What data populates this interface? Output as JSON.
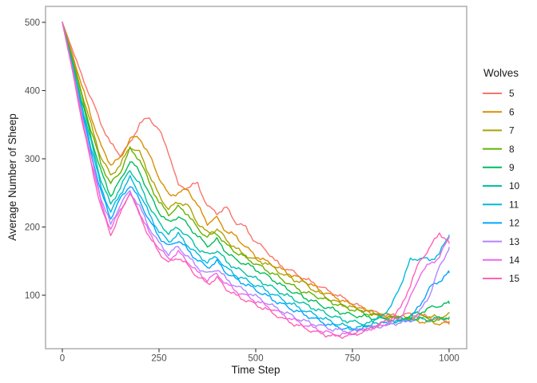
{
  "chart_data": {
    "type": "line",
    "title": "",
    "xlabel": "Time Step",
    "ylabel": "Average Number of Sheep",
    "legend_title": "Wolves",
    "legend_position": "right",
    "grid": false,
    "background": "#ffffff",
    "panel_border_color": "#b3b3b3",
    "tick_color": "#333333",
    "tick_label_color": "#4d4d4d",
    "axis_title_color": "#1a1a1a",
    "xlim": [
      -40,
      1045
    ],
    "ylim": [
      24,
      523
    ],
    "x_ticks": [
      0,
      250,
      500,
      750,
      1000
    ],
    "y_ticks": [
      100,
      200,
      300,
      400,
      500
    ],
    "x": [
      0,
      25,
      50,
      75,
      100,
      125,
      150,
      175,
      200,
      225,
      250,
      275,
      300,
      325,
      350,
      375,
      400,
      425,
      450,
      475,
      500,
      525,
      550,
      575,
      600,
      625,
      650,
      675,
      700,
      725,
      750,
      775,
      800,
      825,
      850,
      875,
      900,
      925,
      950,
      975,
      1000
    ],
    "series": [
      {
        "name": "5",
        "color": "#F8766D",
        "values": [
          500,
          462,
          422,
          388,
          352,
          322,
          306,
          322,
          352,
          360,
          342,
          310,
          260,
          258,
          264,
          230,
          221,
          228,
          206,
          199,
          177,
          168,
          150,
          140,
          133,
          124,
          118,
          110,
          103,
          96,
          88,
          82,
          76,
          72,
          70,
          71,
          72,
          70,
          68,
          64,
          62
        ]
      },
      {
        "name": "6",
        "color": "#DB8E00",
        "values": [
          500,
          455,
          408,
          362,
          318,
          292,
          300,
          330,
          331,
          305,
          273,
          246,
          250,
          255,
          231,
          206,
          213,
          193,
          186,
          170,
          158,
          150,
          143,
          135,
          128,
          122,
          113,
          105,
          99,
          92,
          86,
          80,
          74,
          70,
          68,
          66,
          64,
          62,
          60,
          59,
          58
        ]
      },
      {
        "name": "7",
        "color": "#AEA200",
        "values": [
          500,
          450,
          398,
          348,
          302,
          276,
          291,
          318,
          309,
          277,
          246,
          226,
          237,
          231,
          206,
          191,
          197,
          181,
          168,
          158,
          151,
          148,
          139,
          129,
          123,
          118,
          108,
          99,
          92,
          86,
          82,
          78,
          75,
          72,
          70,
          68,
          67,
          71,
          69,
          67,
          74
        ]
      },
      {
        "name": "8",
        "color": "#64B200",
        "values": [
          500,
          448,
          392,
          340,
          293,
          263,
          281,
          314,
          299,
          265,
          236,
          219,
          229,
          219,
          197,
          186,
          191,
          173,
          163,
          155,
          146,
          138,
          130,
          121,
          112,
          105,
          100,
          95,
          89,
          84,
          79,
          75,
          72,
          69,
          67,
          65,
          64,
          67,
          65,
          63,
          68
        ]
      },
      {
        "name": "9",
        "color": "#00BD5C",
        "values": [
          500,
          445,
          385,
          331,
          281,
          246,
          268,
          297,
          281,
          248,
          222,
          206,
          216,
          203,
          186,
          173,
          181,
          163,
          151,
          146,
          138,
          130,
          121,
          111,
          104,
          97,
          91,
          84,
          79,
          74,
          71,
          69,
          67,
          65,
          64,
          66,
          70,
          75,
          81,
          85,
          88
        ]
      },
      {
        "name": "10",
        "color": "#00C1A7",
        "values": [
          500,
          442,
          380,
          323,
          269,
          233,
          258,
          284,
          262,
          231,
          206,
          191,
          199,
          186,
          169,
          159,
          166,
          149,
          139,
          132,
          124,
          117,
          109,
          101,
          94,
          87,
          81,
          75,
          69,
          64,
          61,
          59,
          59,
          61,
          63,
          62,
          64,
          65,
          64,
          66,
          67
        ]
      },
      {
        "name": "11",
        "color": "#00BADE",
        "values": [
          500,
          440,
          375,
          316,
          259,
          221,
          249,
          272,
          249,
          219,
          193,
          179,
          189,
          173,
          159,
          149,
          156,
          139,
          129,
          122,
          115,
          108,
          100,
          92,
          85,
          78,
          72,
          66,
          60,
          56,
          51,
          53,
          58,
          70,
          83,
          116,
          151,
          155,
          151,
          161,
          188
        ]
      },
      {
        "name": "12",
        "color": "#00A6FF",
        "values": [
          500,
          438,
          370,
          309,
          251,
          213,
          241,
          262,
          239,
          209,
          186,
          171,
          181,
          166,
          151,
          141,
          149,
          133,
          123,
          116,
          108,
          100,
          92,
          85,
          78,
          72,
          66,
          60,
          55,
          52,
          50,
          52,
          55,
          58,
          60,
          62,
          65,
          86,
          111,
          121,
          133
        ]
      },
      {
        "name": "13",
        "color": "#B385FF",
        "values": [
          500,
          436,
          366,
          301,
          243,
          203,
          233,
          253,
          229,
          199,
          176,
          161,
          171,
          156,
          141,
          131,
          139,
          123,
          113,
          106,
          98,
          90,
          82,
          75,
          68,
          62,
          58,
          54,
          50,
          48,
          47,
          50,
          52,
          55,
          58,
          60,
          62,
          76,
          101,
          141,
          170
        ]
      },
      {
        "name": "14",
        "color": "#EF67EB",
        "values": [
          500,
          434,
          362,
          296,
          236,
          196,
          226,
          248,
          221,
          191,
          169,
          153,
          163,
          149,
          133,
          123,
          131,
          116,
          106,
          99,
          92,
          85,
          78,
          70,
          63,
          57,
          52,
          47,
          43,
          42,
          44,
          48,
          52,
          56,
          60,
          68,
          96,
          131,
          146,
          156,
          185
        ]
      },
      {
        "name": "15",
        "color": "#FF63B6",
        "values": [
          500,
          432,
          358,
          291,
          229,
          189,
          219,
          252,
          218,
          185,
          163,
          147,
          156,
          143,
          127,
          117,
          125,
          109,
          99,
          93,
          86,
          80,
          72,
          64,
          58,
          52,
          47,
          43,
          40,
          40,
          42,
          46,
          52,
          58,
          66,
          81,
          116,
          151,
          169,
          192,
          176
        ]
      }
    ]
  }
}
